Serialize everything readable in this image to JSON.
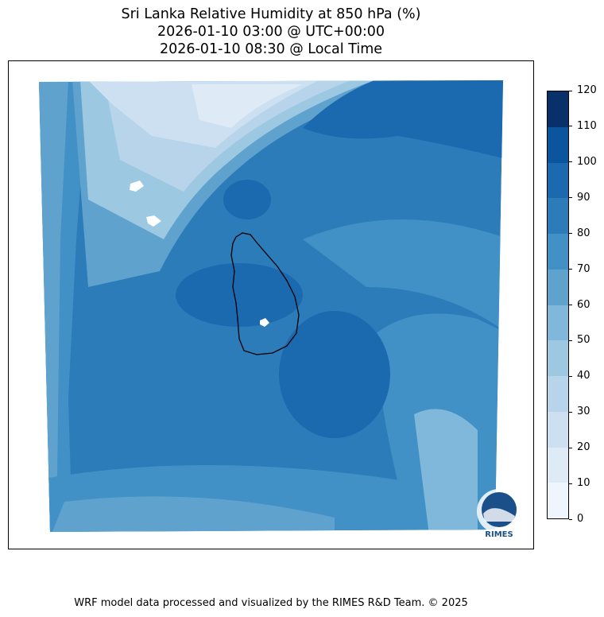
{
  "title": {
    "line1": "Sri Lanka Relative Humidity at 850 hPa (%)",
    "line2": "2026-01-10 03:00 @ UTC+00:00",
    "line3": "2026-01-10 08:30 @ Local Time"
  },
  "colorbar": {
    "ticks": [
      "0",
      "10",
      "20",
      "30",
      "40",
      "50",
      "60",
      "70",
      "80",
      "90",
      "100",
      "110",
      "120"
    ],
    "colors": [
      "#eef5fc",
      "#deebf7",
      "#cde0f2",
      "#b7d4ea",
      "#9cc8e1",
      "#7fb8da",
      "#5fa2ce",
      "#4190c6",
      "#2c7cba",
      "#1b69af",
      "#0b559f",
      "#08306b"
    ]
  },
  "logo": {
    "text": "RIMES"
  },
  "footer": "WRF model data processed and visualized by the RIMES R&D Team. © 2025"
}
